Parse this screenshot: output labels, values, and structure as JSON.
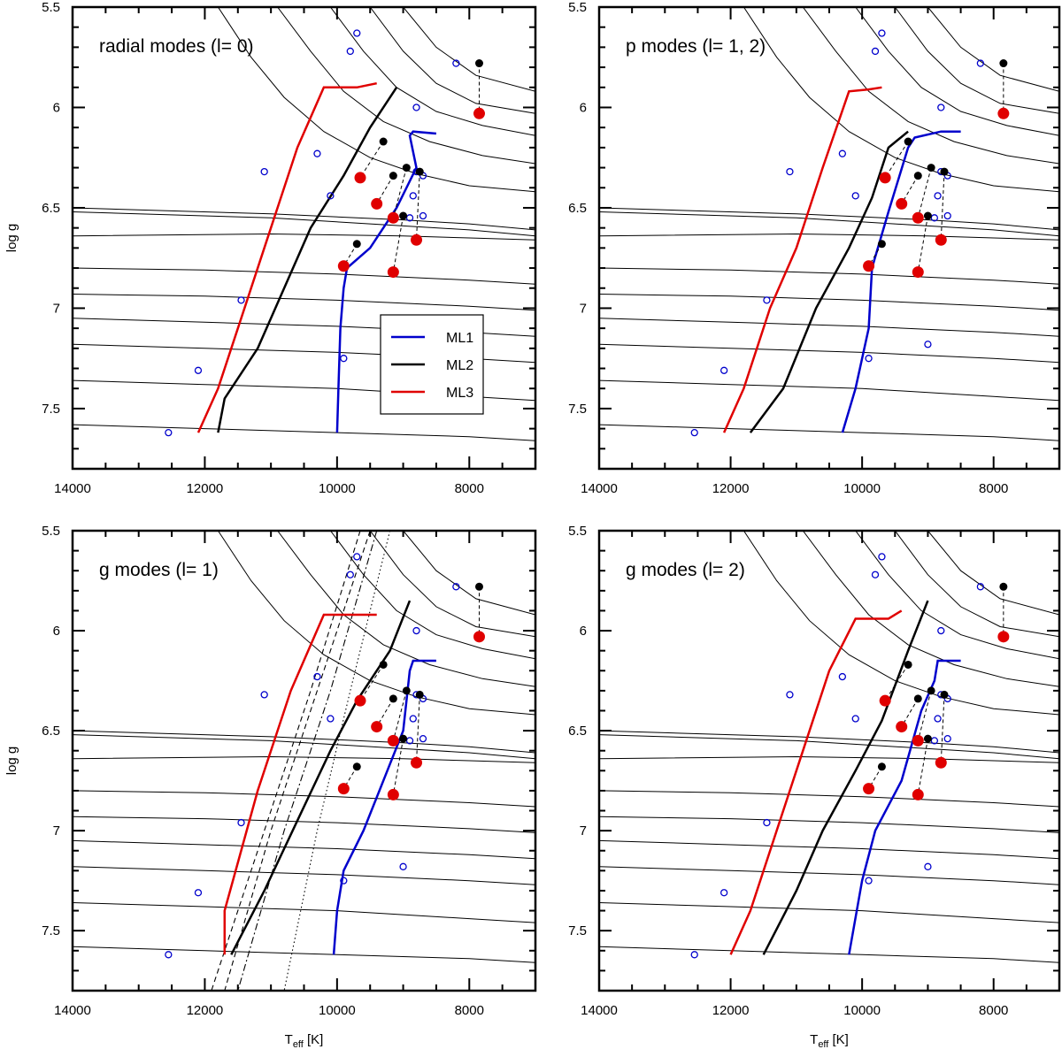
{
  "chart_data": {
    "type": "scatter",
    "ylabel": "log g",
    "xlabel_main": "T",
    "xlabel_sub": "eff",
    "xlabel_unit": " [K]",
    "xlim": [
      14000,
      7000
    ],
    "ylim": [
      7.8,
      5.5
    ],
    "x_ticks": [
      14000,
      12000,
      10000,
      8000
    ],
    "x_tick_labels": [
      "14000",
      "12000",
      "10000",
      "8000"
    ],
    "y_ticks": [
      5.5,
      6,
      6.5,
      7,
      7.5
    ],
    "y_tick_labels": [
      "5.5",
      "6",
      "6.5",
      "7",
      "7.5"
    ],
    "legend": [
      {
        "label": "ML1",
        "color": "#0000cc"
      },
      {
        "label": "ML2",
        "color": "#000000"
      },
      {
        "label": "ML3",
        "color": "#e00000"
      }
    ],
    "open_points": [
      [
        9700,
        5.63
      ],
      [
        9800,
        5.72
      ],
      [
        8200,
        5.78
      ],
      [
        8800,
        6.0
      ],
      [
        11100,
        6.32
      ],
      [
        10300,
        6.23
      ],
      [
        10100,
        6.44
      ],
      [
        8800,
        6.32
      ],
      [
        8700,
        6.34
      ],
      [
        8850,
        6.44
      ],
      [
        8900,
        6.55
      ],
      [
        8700,
        6.54
      ],
      [
        11450,
        6.96
      ],
      [
        9900,
        7.25
      ],
      [
        9000,
        7.18
      ],
      [
        12100,
        7.31
      ],
      [
        12550,
        7.62
      ]
    ],
    "paired_points": [
      {
        "black": [
          7850,
          5.78
        ],
        "red": [
          7850,
          6.03
        ]
      },
      {
        "black": [
          9300,
          6.17
        ],
        "red": [
          9650,
          6.35
        ]
      },
      {
        "black": [
          9150,
          6.34
        ],
        "red": [
          9400,
          6.48
        ]
      },
      {
        "black": [
          8950,
          6.3
        ],
        "red": [
          9150,
          6.55
        ]
      },
      {
        "black": [
          8750,
          6.32
        ],
        "red": [
          8800,
          6.66
        ]
      },
      {
        "black": [
          9000,
          6.54
        ],
        "red": [
          9150,
          6.82
        ]
      },
      {
        "black": [
          9700,
          6.68
        ],
        "red": [
          9900,
          6.79
        ]
      }
    ],
    "tracks_upper": [
      [
        [
          11800,
          5.5
        ],
        [
          11300,
          5.75
        ],
        [
          10800,
          5.95
        ],
        [
          10200,
          6.12
        ],
        [
          9500,
          6.25
        ],
        [
          8800,
          6.33
        ],
        [
          8000,
          6.39
        ],
        [
          7000,
          6.42
        ]
      ],
      [
        [
          10900,
          5.5
        ],
        [
          10400,
          5.72
        ],
        [
          9900,
          5.92
        ],
        [
          9300,
          6.07
        ],
        [
          8600,
          6.17
        ],
        [
          7800,
          6.24
        ],
        [
          7000,
          6.28
        ]
      ],
      [
        [
          10100,
          5.5
        ],
        [
          9600,
          5.72
        ],
        [
          9100,
          5.9
        ],
        [
          8500,
          6.02
        ],
        [
          7800,
          6.09
        ],
        [
          7000,
          6.14
        ]
      ],
      [
        [
          9500,
          5.5
        ],
        [
          9000,
          5.72
        ],
        [
          8500,
          5.88
        ],
        [
          7900,
          5.98
        ],
        [
          7000,
          6.03
        ]
      ],
      [
        [
          9000,
          5.5
        ],
        [
          8500,
          5.7
        ],
        [
          7900,
          5.84
        ],
        [
          7000,
          5.92
        ]
      ]
    ],
    "tracks_lower": [
      [
        [
          14000,
          6.5
        ],
        [
          11000,
          6.53
        ],
        [
          9000,
          6.56
        ],
        [
          8000,
          6.58
        ],
        [
          7000,
          6.61
        ]
      ],
      [
        [
          14000,
          6.52
        ],
        [
          11000,
          6.55
        ],
        [
          9000,
          6.59
        ],
        [
          8000,
          6.61
        ],
        [
          7000,
          6.64
        ]
      ],
      [
        [
          14000,
          6.64
        ],
        [
          11000,
          6.63
        ],
        [
          9000,
          6.64
        ],
        [
          8000,
          6.65
        ],
        [
          7000,
          6.66
        ]
      ],
      [
        [
          14000,
          6.8
        ],
        [
          12000,
          6.81
        ],
        [
          10000,
          6.83
        ],
        [
          8000,
          6.86
        ],
        [
          7000,
          6.88
        ]
      ],
      [
        [
          14000,
          6.93
        ],
        [
          12000,
          6.94
        ],
        [
          10000,
          6.96
        ],
        [
          8000,
          6.99
        ],
        [
          7000,
          7.01
        ]
      ],
      [
        [
          14000,
          7.05
        ],
        [
          12000,
          7.07
        ],
        [
          10000,
          7.09
        ],
        [
          8000,
          7.12
        ],
        [
          7000,
          7.14
        ]
      ],
      [
        [
          14000,
          7.18
        ],
        [
          12000,
          7.2
        ],
        [
          10000,
          7.22
        ],
        [
          8000,
          7.25
        ],
        [
          7000,
          7.27
        ]
      ],
      [
        [
          14000,
          7.36
        ],
        [
          12000,
          7.38
        ],
        [
          10000,
          7.4
        ],
        [
          8000,
          7.44
        ],
        [
          7000,
          7.46
        ]
      ],
      [
        [
          14000,
          7.58
        ],
        [
          12000,
          7.6
        ],
        [
          10000,
          7.62
        ],
        [
          8000,
          7.64
        ],
        [
          7000,
          7.66
        ]
      ]
    ],
    "panels": [
      {
        "title": "radial modes (l= 0)",
        "show_legend": true,
        "ml1": [
          [
            8500,
            6.13
          ],
          [
            8850,
            6.12
          ],
          [
            8900,
            6.14
          ],
          [
            8800,
            6.3
          ],
          [
            9100,
            6.5
          ],
          [
            9500,
            6.7
          ],
          [
            9850,
            6.8
          ],
          [
            9900,
            6.9
          ],
          [
            9950,
            7.1
          ],
          [
            9980,
            7.4
          ],
          [
            10000,
            7.62
          ]
        ],
        "ml2": [
          [
            9100,
            5.9
          ],
          [
            9500,
            6.1
          ],
          [
            9900,
            6.34
          ],
          [
            10400,
            6.6
          ],
          [
            10800,
            6.9
          ],
          [
            11200,
            7.2
          ],
          [
            11700,
            7.45
          ],
          [
            11800,
            7.62
          ]
        ],
        "ml3": [
          [
            9400,
            5.88
          ],
          [
            9700,
            5.9
          ],
          [
            10200,
            5.9
          ],
          [
            10600,
            6.2
          ],
          [
            11000,
            6.6
          ],
          [
            11400,
            7.0
          ],
          [
            11800,
            7.4
          ],
          [
            12100,
            7.62
          ]
        ],
        "instability_lines": []
      },
      {
        "title": "p modes (l= 1, 2)",
        "show_legend": false,
        "ml1": [
          [
            8500,
            6.12
          ],
          [
            8800,
            6.12
          ],
          [
            9200,
            6.15
          ],
          [
            9300,
            6.2
          ],
          [
            9600,
            6.52
          ],
          [
            9850,
            6.8
          ],
          [
            9900,
            7.1
          ],
          [
            10100,
            7.4
          ],
          [
            10300,
            7.62
          ]
        ],
        "ml2": [
          [
            9300,
            6.12
          ],
          [
            9600,
            6.2
          ],
          [
            9850,
            6.45
          ],
          [
            10200,
            6.7
          ],
          [
            10700,
            7.0
          ],
          [
            11200,
            7.4
          ],
          [
            11700,
            7.62
          ]
        ],
        "ml3": [
          [
            9700,
            5.9
          ],
          [
            9900,
            5.91
          ],
          [
            10200,
            5.92
          ],
          [
            10600,
            6.3
          ],
          [
            11000,
            6.7
          ],
          [
            11400,
            7.0
          ],
          [
            11800,
            7.4
          ],
          [
            12100,
            7.62
          ]
        ],
        "instability_lines": []
      },
      {
        "title": "g modes (l= 1)",
        "show_legend": false,
        "ml1": [
          [
            8500,
            6.15
          ],
          [
            8850,
            6.15
          ],
          [
            8900,
            6.2
          ],
          [
            9000,
            6.5
          ],
          [
            9300,
            6.75
          ],
          [
            9600,
            7.0
          ],
          [
            9900,
            7.2
          ],
          [
            10000,
            7.4
          ],
          [
            10050,
            7.62
          ]
        ],
        "ml2": [
          [
            8900,
            5.85
          ],
          [
            9200,
            6.1
          ],
          [
            9700,
            6.35
          ],
          [
            10100,
            6.6
          ],
          [
            10600,
            6.95
          ],
          [
            11100,
            7.3
          ],
          [
            11600,
            7.62
          ]
        ],
        "ml3": [
          [
            9400,
            5.92
          ],
          [
            9700,
            5.92
          ],
          [
            10200,
            5.92
          ],
          [
            10700,
            6.3
          ],
          [
            11200,
            6.8
          ],
          [
            11700,
            7.4
          ],
          [
            11700,
            7.62
          ]
        ],
        "instability_lines": [
          {
            "style": "dashed",
            "points": [
              [
                9500,
                5.5
              ],
              [
                10300,
                6.3
              ],
              [
                11000,
                7.0
              ],
              [
                11700,
                7.8
              ]
            ]
          },
          {
            "style": "dashed",
            "points": [
              [
                9650,
                5.5
              ],
              [
                10400,
                6.3
              ],
              [
                11100,
                7.0
              ],
              [
                11900,
                7.8
              ]
            ]
          },
          {
            "style": "dashdot",
            "points": [
              [
                9400,
                5.5
              ],
              [
                10100,
                6.3
              ],
              [
                10800,
                7.0
              ],
              [
                11500,
                7.8
              ]
            ]
          },
          {
            "style": "dotted",
            "points": [
              [
                9200,
                5.5
              ],
              [
                9800,
                6.3
              ],
              [
                10300,
                7.0
              ],
              [
                10800,
                7.8
              ]
            ]
          }
        ]
      },
      {
        "title": "g modes (l= 2)",
        "show_legend": false,
        "ml1": [
          [
            8500,
            6.15
          ],
          [
            8850,
            6.15
          ],
          [
            8900,
            6.25
          ],
          [
            9100,
            6.4
          ],
          [
            9400,
            6.75
          ],
          [
            9800,
            7.0
          ],
          [
            10000,
            7.25
          ],
          [
            10200,
            7.62
          ]
        ],
        "ml2": [
          [
            9000,
            5.85
          ],
          [
            9300,
            6.1
          ],
          [
            9700,
            6.45
          ],
          [
            10100,
            6.7
          ],
          [
            10600,
            7.0
          ],
          [
            11000,
            7.3
          ],
          [
            11500,
            7.62
          ]
        ],
        "ml3": [
          [
            9400,
            5.9
          ],
          [
            9600,
            5.94
          ],
          [
            10100,
            5.94
          ],
          [
            10500,
            6.2
          ],
          [
            10900,
            6.6
          ],
          [
            11300,
            7.0
          ],
          [
            11700,
            7.4
          ],
          [
            12000,
            7.62
          ]
        ],
        "instability_lines": []
      }
    ]
  }
}
